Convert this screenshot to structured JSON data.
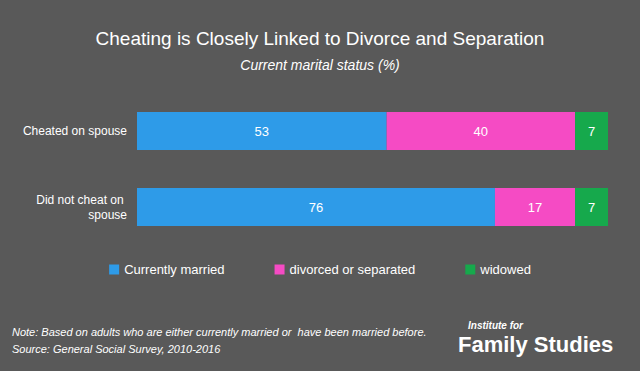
{
  "chart_data": {
    "type": "bar",
    "title": "Cheating is Closely Linked to Divorce and Separation",
    "subtitle": "Current marital status (%)",
    "orientation": "horizontal",
    "stacked": true,
    "data_labels": true,
    "tick_labels": "y",
    "grid": false,
    "legend": "bottom",
    "categories": [
      "Cheated on spouse",
      "Did not cheat on spouse"
    ],
    "xlim": [
      0,
      100
    ],
    "series": [
      {
        "name": "Currently married",
        "color": "#2e9be8",
        "values": [
          53,
          76
        ]
      },
      {
        "name": "divorced or separated",
        "color": "#f54bc4",
        "values": [
          40,
          17
        ]
      },
      {
        "name": "widowed",
        "color": "#16a94c",
        "values": [
          7,
          7
        ]
      }
    ],
    "annotations": [
      "Note: Based on adults who are either currently married or  have been married before.",
      "Source: General Social Survey, 2010-2016",
      "Institute for",
      "Family Studies"
    ]
  }
}
